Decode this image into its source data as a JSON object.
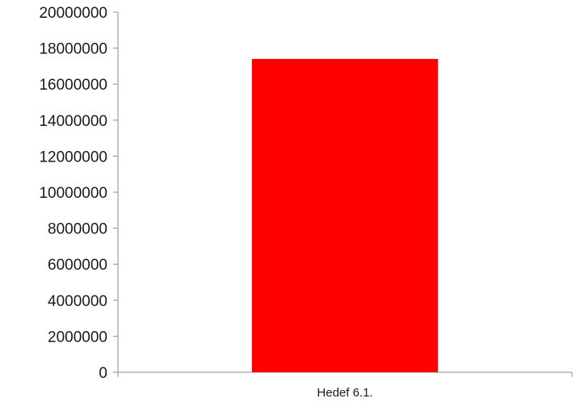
{
  "chart_data": {
    "type": "bar",
    "categories": [
      "Hedef 6.1."
    ],
    "values": [
      17400000
    ],
    "ylim": [
      0,
      20000000
    ],
    "yticks": [
      "0",
      "2000000",
      "4000000",
      "6000000",
      "8000000",
      "10000000",
      "12000000",
      "14000000",
      "16000000",
      "18000000",
      "20000000"
    ],
    "grid": false,
    "legend": "none",
    "colors": {
      "bar": "#ff0000",
      "axis": "#8c8c8c",
      "text": "#1a1a1a"
    }
  }
}
